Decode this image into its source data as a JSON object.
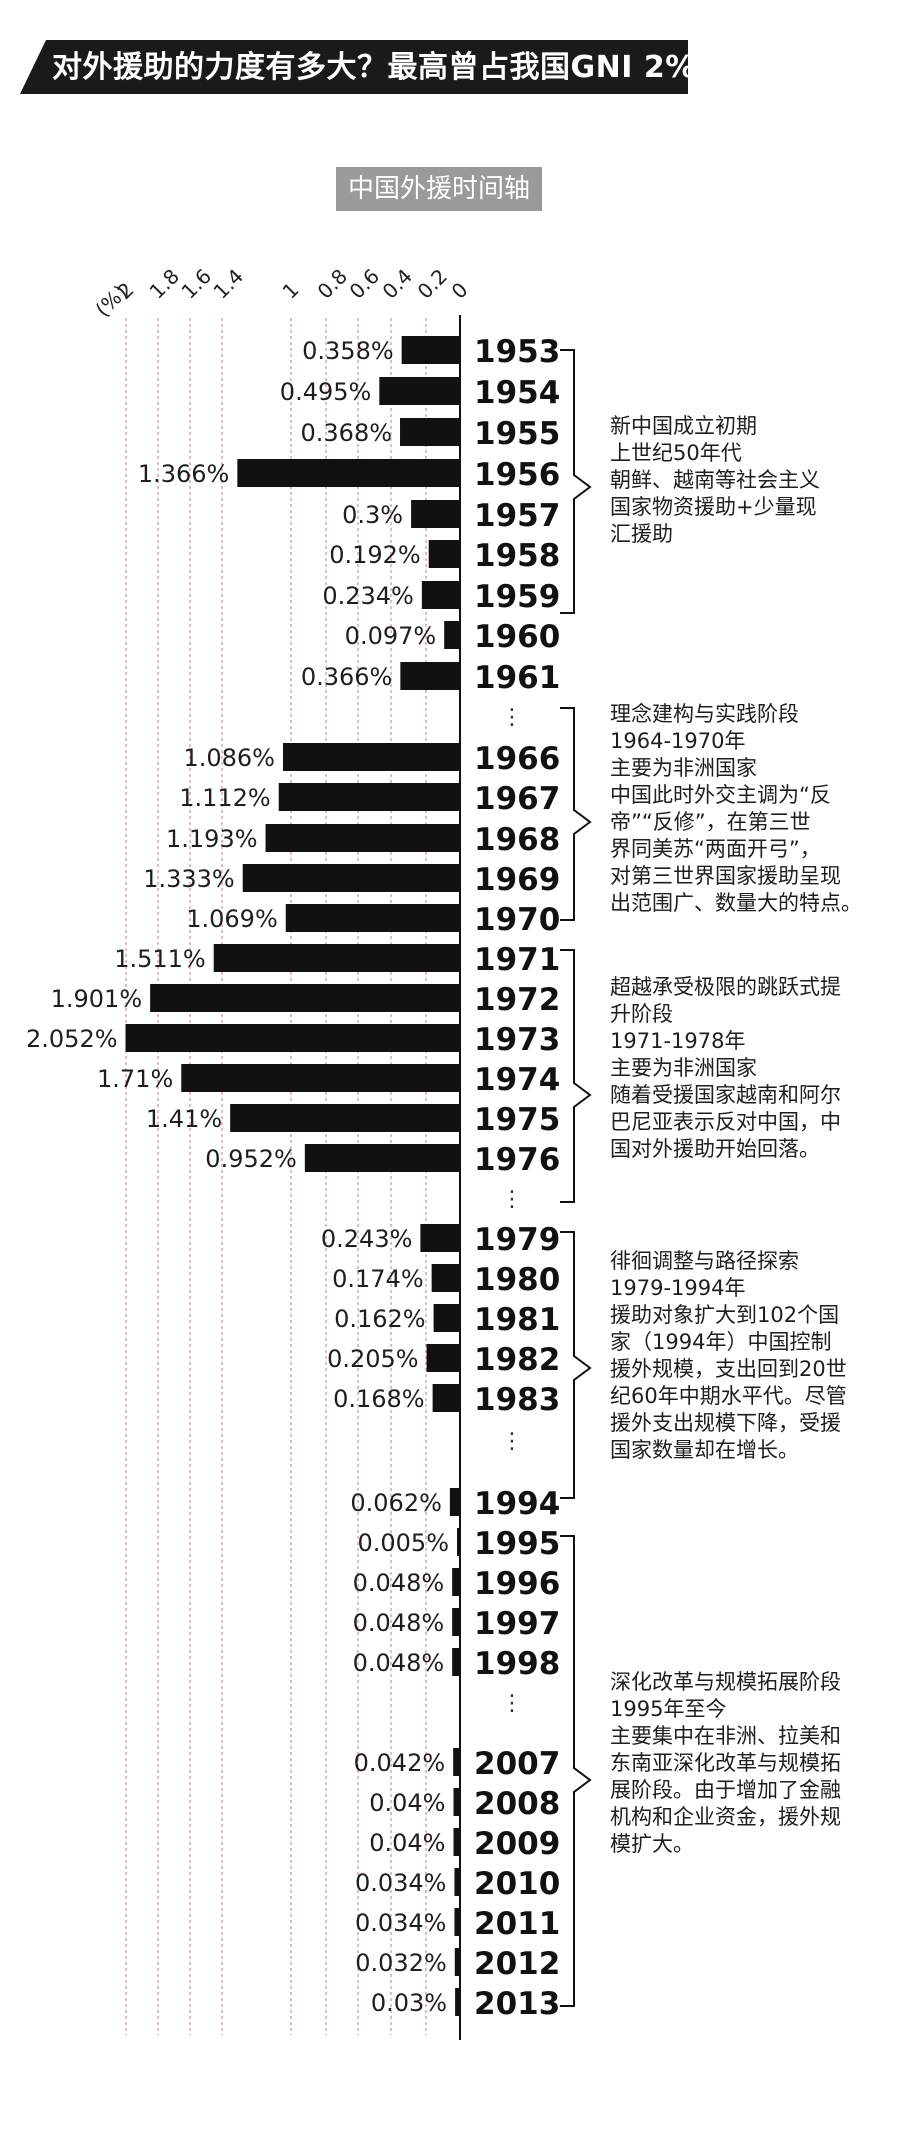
{
  "title": "对外援助的力度有多大？最高曾占我国GNI 2%",
  "subtitle": "中国外援时间轴",
  "chart_data": {
    "type": "bar",
    "orientation": "horizontal",
    "title": "中国外援时间轴",
    "unit_label": "(%)",
    "x_ticks": [
      "2",
      "1.8",
      "1.6",
      "1.4",
      "1",
      "0.8",
      "0.6",
      "0.4",
      "0.2",
      "0"
    ],
    "xlim": [
      0,
      2.1
    ],
    "categories": [
      "1953",
      "1954",
      "1955",
      "1956",
      "1957",
      "1958",
      "1959",
      "1960",
      "1961",
      "1966",
      "1967",
      "1968",
      "1969",
      "1970",
      "1971",
      "1972",
      "1973",
      "1974",
      "1975",
      "1976",
      "1979",
      "1980",
      "1981",
      "1982",
      "1983",
      "1994",
      "1995",
      "1996",
      "1997",
      "1998",
      "2007",
      "2008",
      "2009",
      "2010",
      "2011",
      "2012",
      "2013"
    ],
    "values": [
      0.358,
      0.495,
      0.368,
      1.366,
      0.3,
      0.192,
      0.234,
      0.097,
      0.366,
      1.086,
      1.112,
      1.193,
      1.333,
      1.069,
      1.511,
      1.901,
      2.052,
      1.71,
      1.41,
      0.952,
      0.243,
      0.174,
      0.162,
      0.205,
      0.168,
      0.062,
      0.005,
      0.048,
      0.048,
      0.048,
      0.042,
      0.04,
      0.04,
      0.034,
      0.034,
      0.032,
      0.03
    ],
    "value_labels": [
      "0.358%",
      "0.495%",
      "0.368%",
      "1.366%",
      "0.3%",
      "0.192%",
      "0.234%",
      "0.097%",
      "0.366%",
      "1.086%",
      "1.112%",
      "1.193%",
      "1.333%",
      "1.069%",
      "1.511%",
      "1.901%",
      "2.052%",
      "1.71%",
      "1.41%",
      "0.952%",
      "0.243%",
      "0.174%",
      "0.162%",
      "0.205%",
      "0.168%",
      "0.062%",
      "0.005%",
      "0.048%",
      "0.048%",
      "0.048%",
      "0.042%",
      "0.04%",
      "0.04%",
      "0.034%",
      "0.034%",
      "0.032%",
      "0.03%"
    ],
    "gap_marker": "⋮",
    "grid": true,
    "bar_color": "#111111",
    "grid_color": "#c77b7b"
  },
  "periods": [
    {
      "lines": [
        "新中国成立初期",
        "上世纪50年代",
        "朝鲜、越南等社会主义",
        "国家物资援助+少量现",
        "汇援助"
      ]
    },
    {
      "lines": [
        "理念建构与实践阶段",
        "1964-1970年",
        "主要为非洲国家",
        "中国此时外交主调为“反",
        "帝”“反修”，在第三世",
        "界同美苏“两面开弓”，",
        "对第三世界国家援助呈现",
        "出范围广、数量大的特点。"
      ]
    },
    {
      "lines": [
        "超越承受极限的跳跃式提",
        "升阶段",
        "1971-1978年",
        "主要为非洲国家",
        "随着受援国家越南和阿尔",
        "巴尼亚表示反对中国，中",
        "国对外援助开始回落。"
      ]
    },
    {
      "lines": [
        "徘徊调整与路径探索",
        "1979-1994年",
        "援助对象扩大到102个国",
        "家（1994年）中国控制",
        "援外规模，支出回到20世",
        "纪60年中期水平代。尽管",
        "援外支出规模下降，受援",
        "国家数量却在增长。"
      ]
    },
    {
      "lines": [
        "深化改革与规模拓展阶段",
        "1995年至今",
        "主要集中在非洲、拉美和",
        "东南亚深化改革与规模拓",
        "展阶段。由于增加了金融",
        "机构和企业资金，援外规",
        "模扩大。"
      ]
    }
  ]
}
